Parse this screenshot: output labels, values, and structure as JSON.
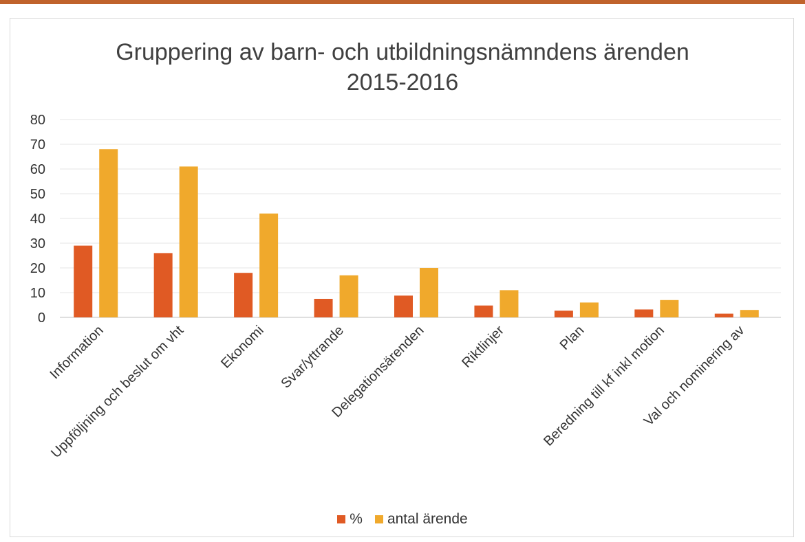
{
  "chart_data": {
    "type": "bar",
    "title": [
      "Gruppering av barn- och utbildningsnämndens ärenden",
      "2015-2016"
    ],
    "categories": [
      "Information",
      "Uppföljning och beslut om vht",
      "Ekonomi",
      "Svar/yttrande",
      "Delegationsärenden",
      "Riktlinjer",
      "Plan",
      "Beredning till kf inkl motion",
      "Val och nominering av"
    ],
    "series": [
      {
        "name": "%",
        "color": "#e05a24",
        "values": [
          29,
          26,
          18,
          7.5,
          8.8,
          4.8,
          2.7,
          3.2,
          1.5
        ]
      },
      {
        "name": "antal ärende",
        "color": "#f0a92c",
        "values": [
          68,
          61,
          42,
          17,
          20,
          11,
          6,
          7,
          3
        ]
      }
    ],
    "ylim": [
      0,
      80
    ],
    "yticks": [
      0,
      10,
      20,
      30,
      40,
      50,
      60,
      70,
      80
    ],
    "grid": true,
    "legend": "bottom"
  }
}
